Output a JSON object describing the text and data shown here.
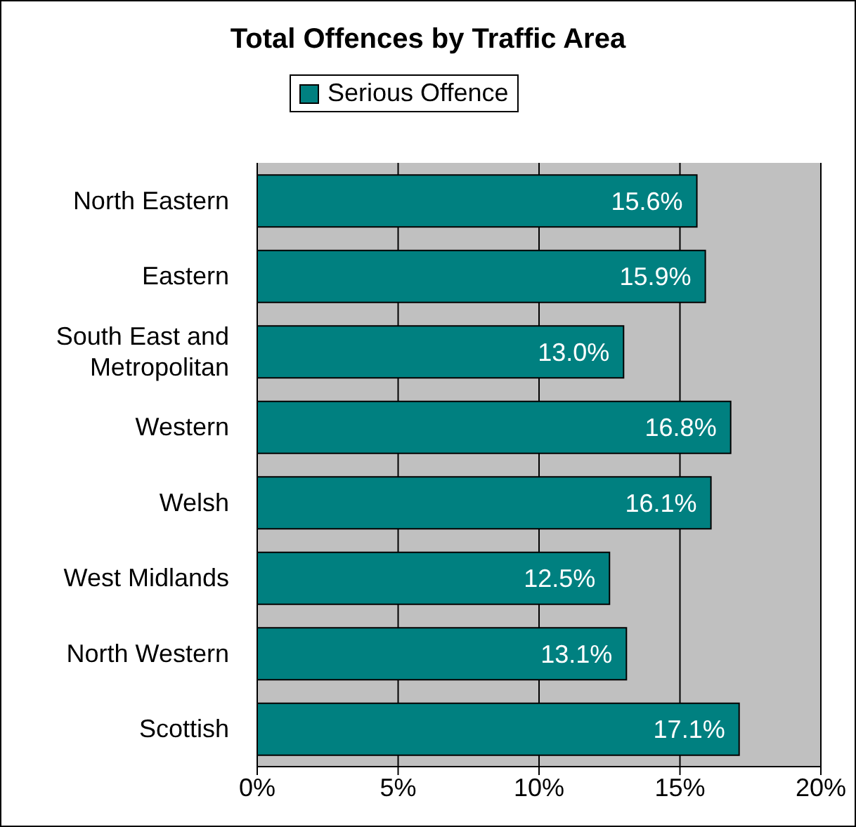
{
  "chart_data": {
    "type": "bar",
    "orientation": "horizontal",
    "title": "Total Offences by Traffic Area",
    "categories": [
      "North Eastern",
      "Eastern",
      "South East and Metropolitan",
      "Western",
      "Welsh",
      "West Midlands",
      "North Western",
      "Scottish"
    ],
    "series": [
      {
        "name": "Serious Offence",
        "color": "#008080",
        "values": [
          15.6,
          15.9,
          13.0,
          16.8,
          16.1,
          12.5,
          13.1,
          17.1
        ],
        "value_labels": [
          "15.6%",
          "15.9%",
          "13.0%",
          "16.8%",
          "16.1%",
          "12.5%",
          "13.1%",
          "17.1%"
        ]
      }
    ],
    "xlim": [
      0,
      20
    ],
    "xticks": [
      {
        "value": 0,
        "label": "0%"
      },
      {
        "value": 5,
        "label": "5%"
      },
      {
        "value": 10,
        "label": "10%"
      },
      {
        "value": 15,
        "label": "15%"
      },
      {
        "value": 20,
        "label": "20%"
      }
    ],
    "grid": "x",
    "legend": "top left"
  }
}
